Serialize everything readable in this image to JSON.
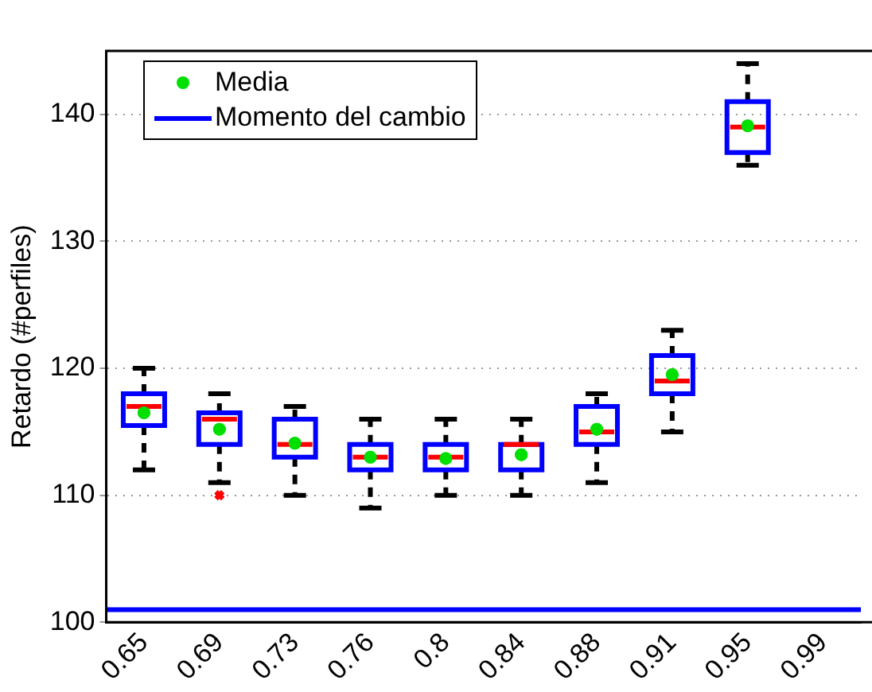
{
  "chart_data": {
    "type": "box",
    "ylabel": "Retardo (#perfiles)",
    "categories": [
      "0.65",
      "0.69",
      "0.73",
      "0.76",
      "0.8",
      "0.84",
      "0.88",
      "0.91",
      "0.95",
      "0.99"
    ],
    "ylim": [
      100,
      145
    ],
    "yticks": [
      100,
      110,
      120,
      130,
      140
    ],
    "grid": "y",
    "legend": "top left",
    "series": [
      {
        "type": "box",
        "color": "#0000ff",
        "boxes": [
          {
            "low": 112,
            "q1": 115.5,
            "median": 117,
            "q3": 118,
            "high": 120
          },
          {
            "low": 111,
            "q1": 114,
            "median": 116,
            "q3": 116.5,
            "high": 118,
            "outliers": [
              110
            ]
          },
          {
            "low": 110,
            "q1": 113,
            "median": 114,
            "q3": 116,
            "high": 117
          },
          {
            "low": 109,
            "q1": 112,
            "median": 113,
            "q3": 114,
            "high": 116
          },
          {
            "low": 110,
            "q1": 112,
            "median": 113,
            "q3": 114,
            "high": 116
          },
          {
            "low": 110,
            "q1": 112,
            "median": 114,
            "q3": 114,
            "high": 116
          },
          {
            "low": 111,
            "q1": 114,
            "median": 115,
            "q3": 117,
            "high": 118
          },
          {
            "low": 115,
            "q1": 118,
            "median": 119,
            "q3": 121,
            "high": 123
          },
          {
            "low": 136,
            "q1": 137,
            "median": 139,
            "q3": 141,
            "high": 144
          },
          null
        ]
      },
      {
        "type": "scatter",
        "name": "Media",
        "color": "#00e000",
        "marker": "circle",
        "x": [
          "0.65",
          "0.69",
          "0.73",
          "0.76",
          "0.8",
          "0.84",
          "0.88",
          "0.91",
          "0.95"
        ],
        "values": [
          116.5,
          115.2,
          114.1,
          113,
          112.9,
          113.2,
          115.2,
          119.5,
          139.1
        ]
      }
    ],
    "ref_lines": [
      {
        "axis": "y",
        "value": 101,
        "label": "Momento del cambio",
        "color": "#0000ff"
      }
    ]
  }
}
